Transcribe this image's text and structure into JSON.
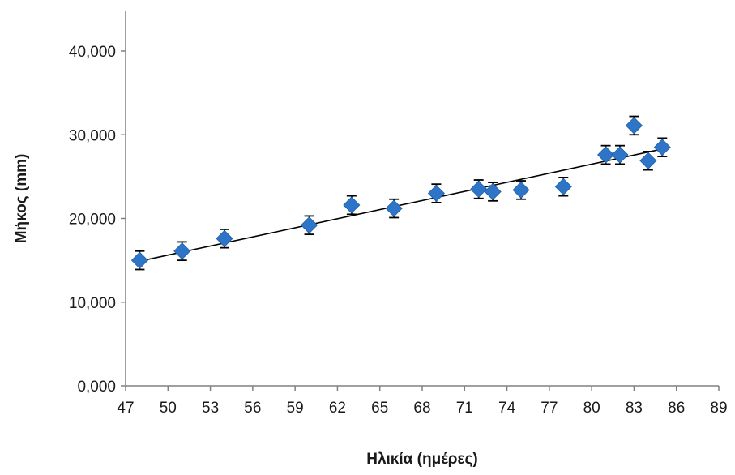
{
  "chart_data": {
    "type": "scatter",
    "title": "",
    "xlabel": "Ηλικία (ημέρες)",
    "ylabel": "Μήκος (mm)",
    "xlim": [
      47,
      89
    ],
    "ylim": [
      0,
      45000
    ],
    "x_ticks": [
      47,
      50,
      53,
      56,
      59,
      62,
      65,
      68,
      71,
      74,
      77,
      80,
      83,
      86,
      89
    ],
    "x_tick_labels": [
      "47",
      "50",
      "53",
      "56",
      "59",
      "62",
      "65",
      "68",
      "71",
      "74",
      "77",
      "80",
      "83",
      "86",
      "89"
    ],
    "y_ticks": [
      0,
      10000,
      20000,
      30000,
      40000
    ],
    "y_tick_labels": [
      "0,000",
      "10,000",
      "20,000",
      "30,000",
      "40,000"
    ],
    "grid": false,
    "legend": "none",
    "marker": "diamond",
    "marker_color": "#2e75c8",
    "series": [
      {
        "x": [
          48,
          51,
          54,
          60,
          63,
          66,
          69,
          72,
          73,
          75,
          78,
          81,
          82,
          83,
          84,
          85
        ],
        "y": [
          15000,
          16100,
          17600,
          19200,
          21600,
          21200,
          23000,
          23500,
          23200,
          23400,
          23800,
          27600,
          27600,
          31100,
          26900,
          28500
        ],
        "error": [
          1100,
          1100,
          1100,
          1100,
          1100,
          1100,
          1100,
          1100,
          1100,
          1100,
          1100,
          1100,
          1100,
          1100,
          1100,
          1100
        ]
      }
    ],
    "trendline": {
      "type": "linear",
      "x": [
        48,
        85
      ],
      "y": [
        14900,
        28300
      ]
    }
  }
}
